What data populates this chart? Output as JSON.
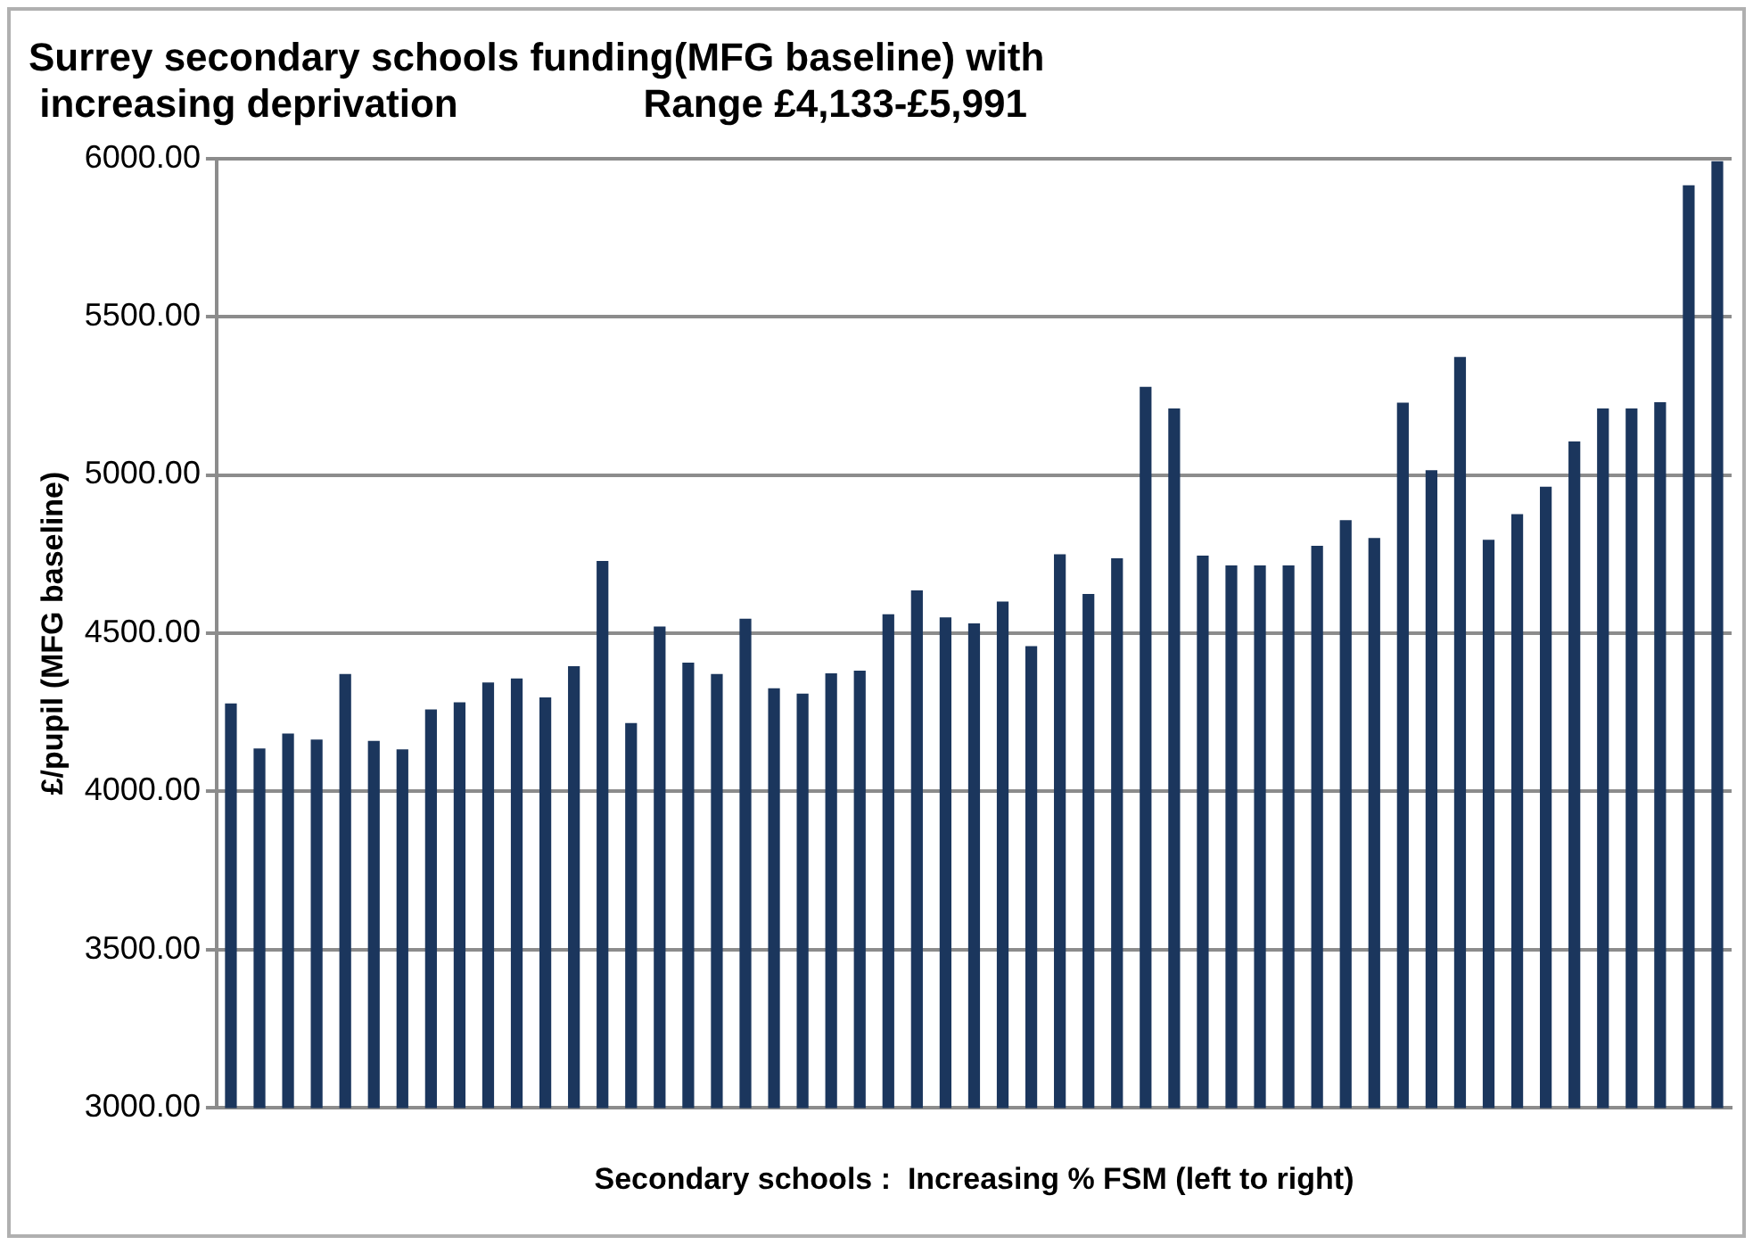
{
  "chart_data": {
    "type": "bar",
    "title": "Surrey secondary schools funding(MFG baseline) with\n increasing deprivation                 Range £4,133-£5,991",
    "xlabel": "Secondary schools :  Increasing % FSM (left to right)",
    "ylabel": "£/pupil (MFG baseline)",
    "categories": [
      null,
      null,
      null,
      null,
      null,
      null,
      null,
      null,
      null,
      null,
      null,
      null,
      null,
      null,
      null,
      null,
      null,
      null,
      null,
      null,
      null,
      null,
      null,
      null,
      null,
      null,
      null,
      null,
      null,
      null,
      null,
      null,
      null,
      null,
      null,
      null,
      null,
      null,
      null,
      null,
      null,
      null,
      null,
      null,
      null,
      null,
      null,
      null,
      null,
      null,
      null,
      null,
      null
    ],
    "values": [
      4278,
      4136,
      4183,
      4164,
      4371,
      4160,
      4133,
      4259,
      4282,
      4344,
      4357,
      4297,
      4396,
      4728,
      4216,
      4521,
      4407,
      4371,
      4546,
      4326,
      4309,
      4373,
      4382,
      4560,
      4635,
      4550,
      4531,
      4600,
      4459,
      4749,
      4624,
      4737,
      5278,
      5210,
      4745,
      4714,
      4714,
      4714,
      4776,
      4857,
      4801,
      5228,
      5015,
      5373,
      4795,
      4876,
      4963,
      5106,
      5210,
      5210,
      5230,
      5915,
      5991
    ],
    "color": "#1b365d",
    "ylim": [
      3000,
      6000
    ],
    "yticks": [
      {
        "value": 3000,
        "label": "3000.00"
      },
      {
        "value": 3500,
        "label": "3500.00"
      },
      {
        "value": 4000,
        "label": "4000.00"
      },
      {
        "value": 4500,
        "label": "4500.00"
      },
      {
        "value": 5000,
        "label": "5000.00"
      },
      {
        "value": 5500,
        "label": "5500.00"
      },
      {
        "value": 6000,
        "label": "6000.00"
      }
    ],
    "grid": "y",
    "legend": false
  }
}
